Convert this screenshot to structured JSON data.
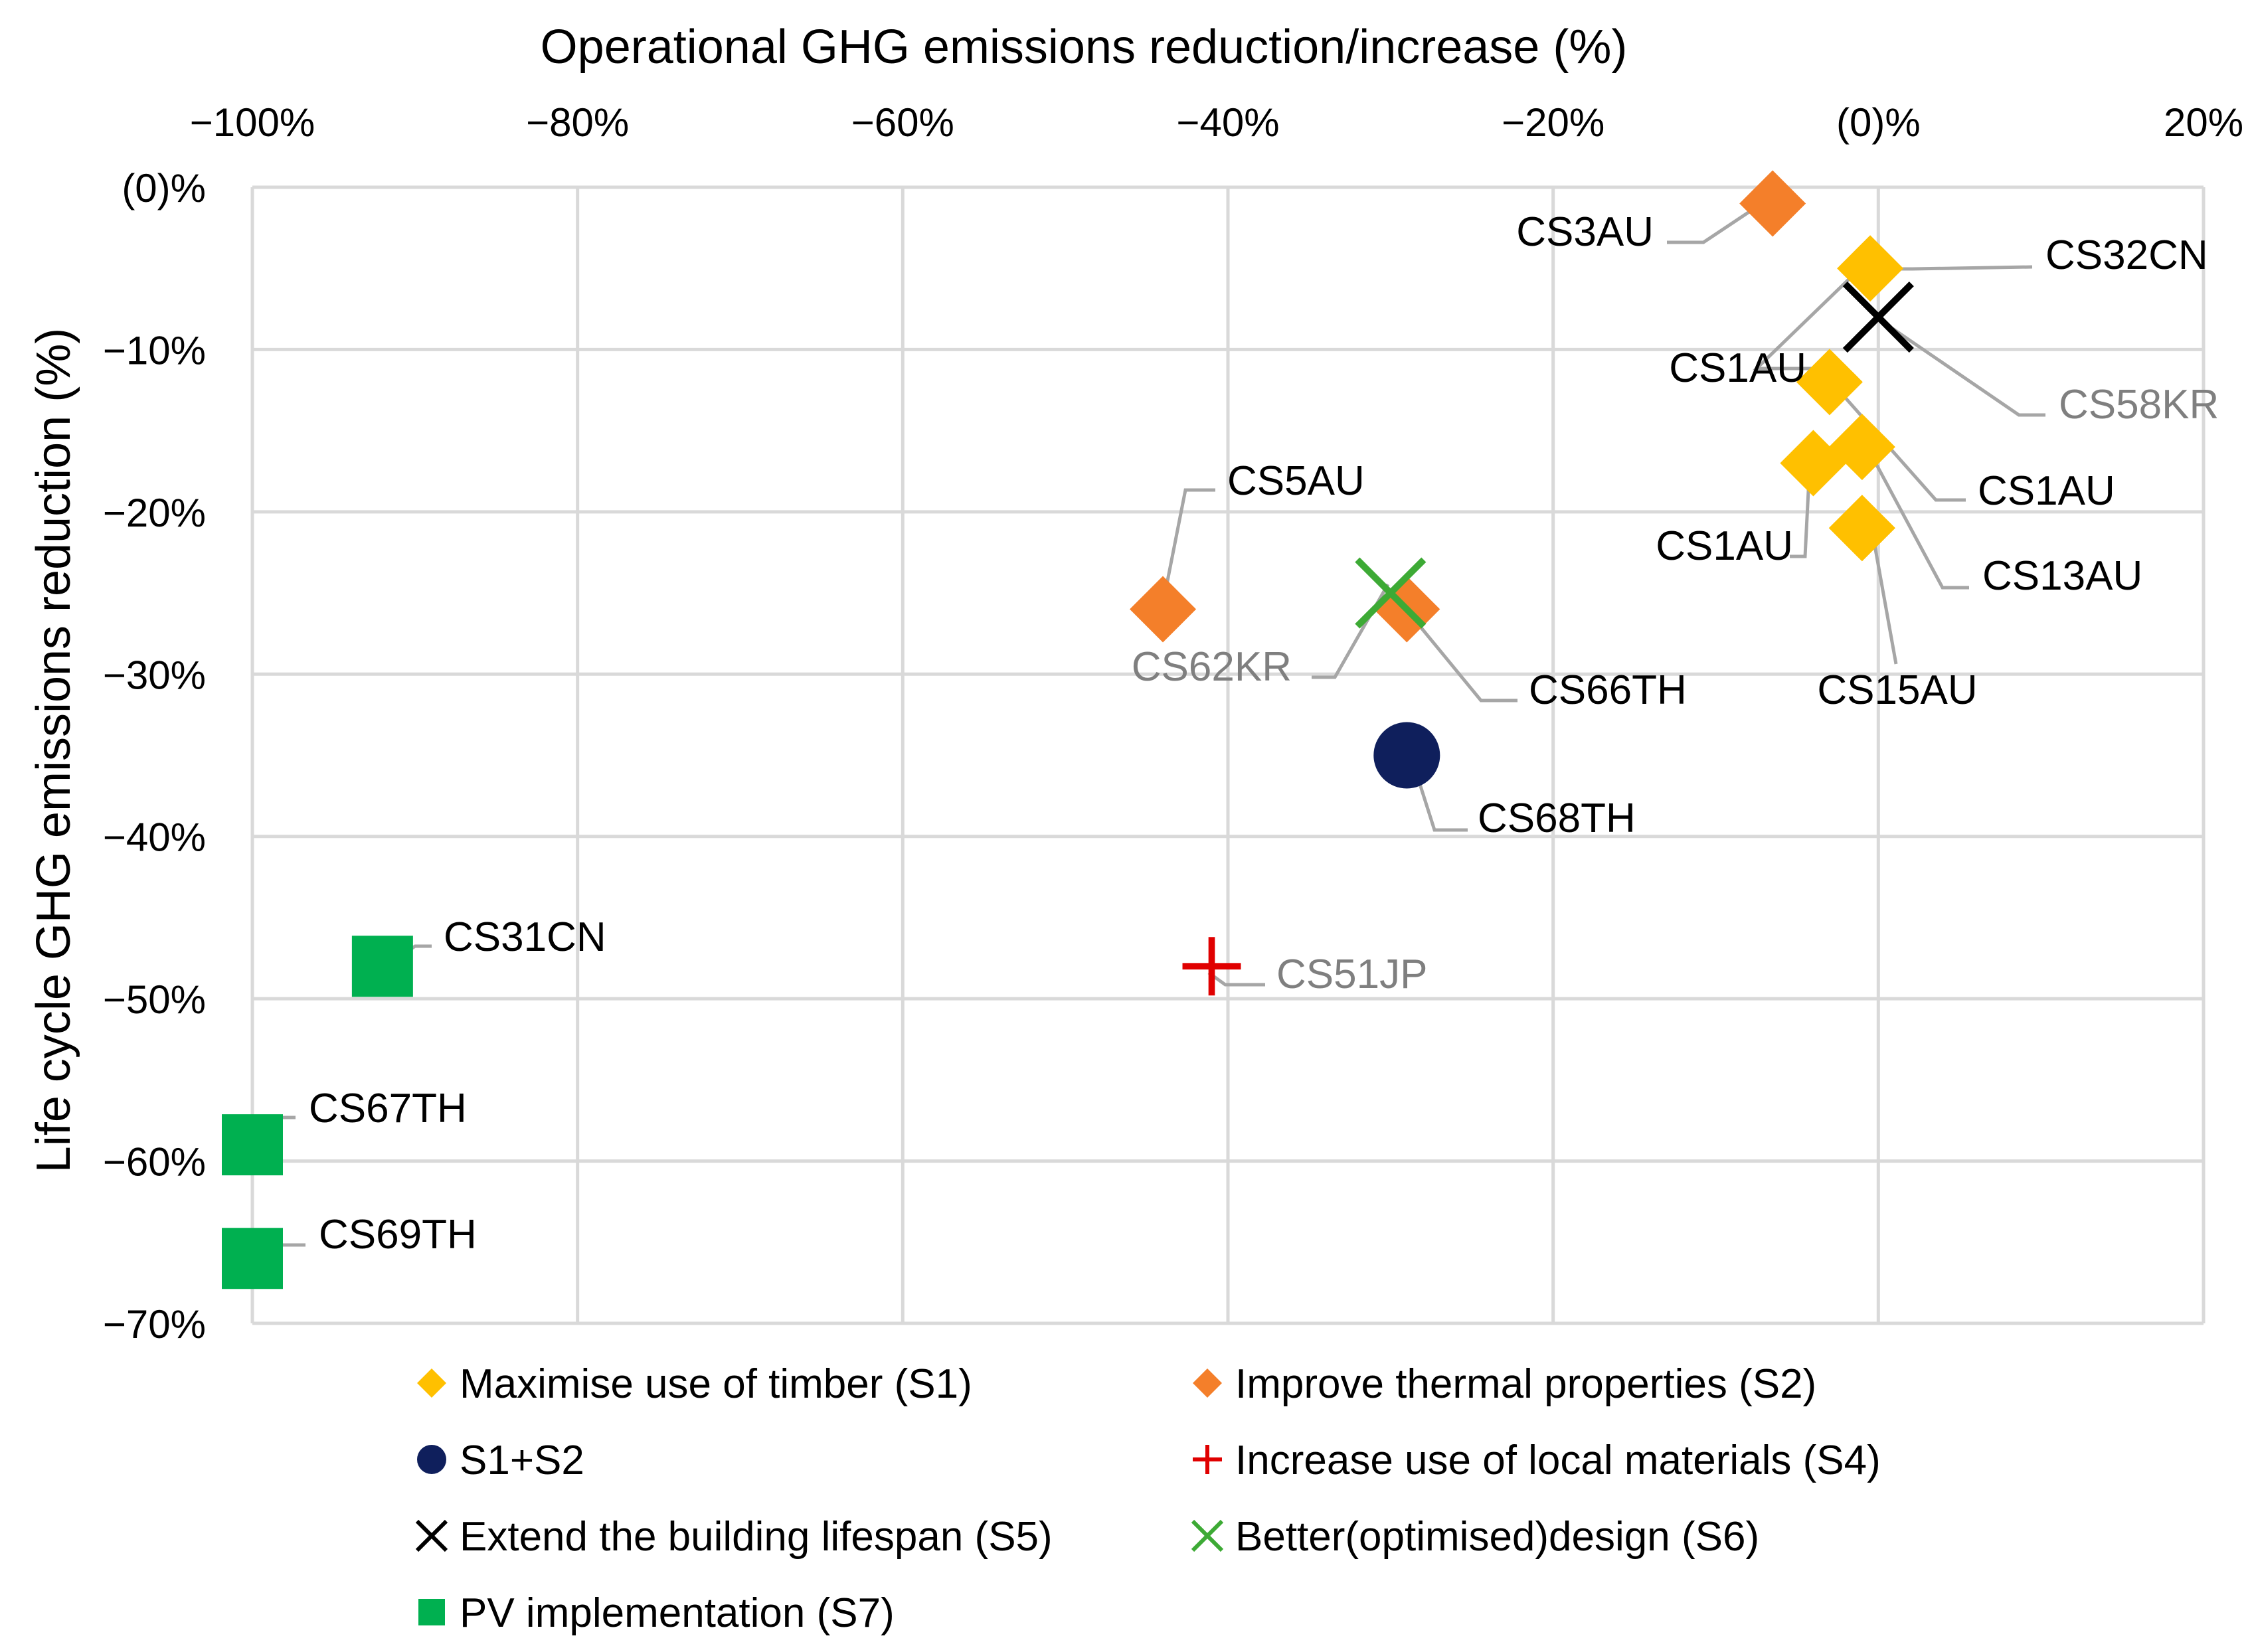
{
  "chart_data": {
    "type": "scatter",
    "title": "",
    "xlabel": "Operational GHG emissions reduction/increase (%)",
    "ylabel": "Life cycle GHG emissions reduction (%)",
    "xlim": [
      -100,
      20
    ],
    "ylim": [
      -70,
      0
    ],
    "x_ticks": [
      {
        "value": -100,
        "label": "−100%"
      },
      {
        "value": -80,
        "label": "−80%"
      },
      {
        "value": -60,
        "label": "−60%"
      },
      {
        "value": -40,
        "label": "−40%"
      },
      {
        "value": -20,
        "label": "−20%"
      },
      {
        "value": 0,
        "label": "(0)%"
      },
      {
        "value": 20,
        "label": "20%"
      }
    ],
    "y_ticks": [
      {
        "value": 0,
        "label": "(0)%"
      },
      {
        "value": -10,
        "label": "−10%"
      },
      {
        "value": -20,
        "label": "−20%"
      },
      {
        "value": -30,
        "label": "−30%"
      },
      {
        "value": -40,
        "label": "−40%"
      },
      {
        "value": -50,
        "label": "−50%"
      },
      {
        "value": -60,
        "label": "−60%"
      },
      {
        "value": -70,
        "label": "−70%"
      }
    ],
    "grid": true,
    "x_axis_position": "top",
    "legend_position": "bottom",
    "series": [
      {
        "name": "Maximise use of timber (S1)",
        "marker": "diamond",
        "color": "#FFC000",
        "points": [
          {
            "x": -0.5,
            "y": -5,
            "label": "CS32CN"
          },
          {
            "x": -3,
            "y": -12,
            "label": "CS1AU"
          },
          {
            "x": -1,
            "y": -16,
            "label": "CS1AU"
          },
          {
            "x": -4,
            "y": -17,
            "label": "CS1AU"
          },
          {
            "x": -1,
            "y": -21,
            "label": "CS13AU"
          },
          {
            "x": -1,
            "y": -21,
            "label": "CS15AU"
          }
        ]
      },
      {
        "name": "Improve thermal properties (S2)",
        "marker": "diamond",
        "color": "#F47F2A",
        "points": [
          {
            "x": -6.5,
            "y": -1,
            "label": "CS3AU"
          },
          {
            "x": -44,
            "y": -26,
            "label": "CS5AU"
          },
          {
            "x": -29,
            "y": -26,
            "label": "CS66TH"
          }
        ]
      },
      {
        "name": "S1+S2",
        "marker": "circle",
        "color": "#0F1F5C",
        "points": [
          {
            "x": -29,
            "y": -35,
            "label": "CS68TH"
          }
        ]
      },
      {
        "name": "Increase use of local materials (S4)",
        "marker": "plus",
        "color": "#E00000",
        "points": [
          {
            "x": -41,
            "y": -48,
            "label": "CS51JP"
          }
        ]
      },
      {
        "name": "Extend the building lifespan (S5)",
        "marker": "x",
        "color": "#000000",
        "points": [
          {
            "x": 0,
            "y": -8,
            "label": "CS58KR"
          }
        ]
      },
      {
        "name": "Better(optimised)design (S6)",
        "marker": "x",
        "color": "#3DAA35",
        "points": [
          {
            "x": -30,
            "y": -25,
            "label": "CS62KR"
          }
        ]
      },
      {
        "name": "PV implementation (S7)",
        "marker": "square",
        "color": "#00B050",
        "points": [
          {
            "x": -92,
            "y": -48,
            "label": "CS31CN"
          },
          {
            "x": -100,
            "y": -59,
            "label": "CS67TH"
          },
          {
            "x": -100,
            "y": -66,
            "label": "CS69TH"
          }
        ]
      }
    ],
    "label_colors": {
      "CS58KR": "#7f7f7f",
      "CS62KR": "#7f7f7f",
      "CS51JP": "#7f7f7f",
      "default": "#000000"
    }
  }
}
